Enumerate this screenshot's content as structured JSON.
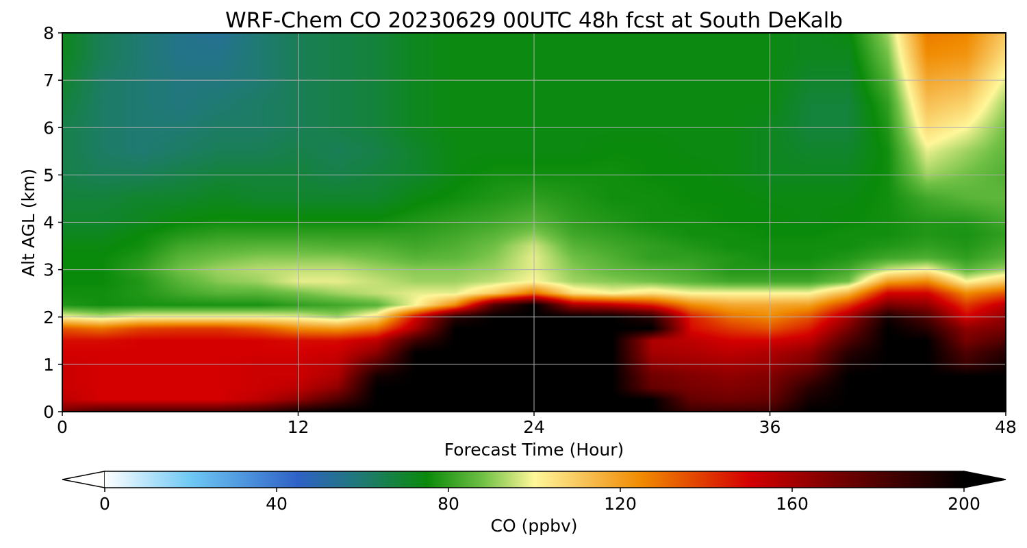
{
  "chart_data": {
    "type": "heatmap",
    "title": "WRF-Chem CO  20230629 00UTC 48h fcst at South DeKalb",
    "xlabel": "Forecast Time (Hour)",
    "ylabel": "Alt AGL (km)",
    "xlim": [
      0,
      48
    ],
    "ylim": [
      0,
      8
    ],
    "xticks": [
      "0",
      "12",
      "24",
      "36",
      "48"
    ],
    "xtick_values": [
      0,
      12,
      24,
      36,
      48
    ],
    "yticks": [
      "0",
      "1",
      "2",
      "3",
      "4",
      "5",
      "6",
      "7",
      "8"
    ],
    "ytick_values": [
      0,
      1,
      2,
      3,
      4,
      5,
      6,
      7,
      8
    ],
    "grid": true,
    "colorbar": {
      "label": "CO  (ppbv)",
      "range": [
        0,
        200
      ],
      "extend": "both",
      "ticks": [
        "0",
        "40",
        "80",
        "120",
        "160",
        "200"
      ],
      "tick_values": [
        0,
        40,
        80,
        120,
        160,
        200
      ],
      "color_stops": [
        {
          "value": 0,
          "color": "#ffffff"
        },
        {
          "value": 20,
          "color": "#6ec8f5"
        },
        {
          "value": 45,
          "color": "#2e62c6"
        },
        {
          "value": 60,
          "color": "#1f7a72"
        },
        {
          "value": 75,
          "color": "#0a8a0a"
        },
        {
          "value": 88,
          "color": "#6fc045"
        },
        {
          "value": 100,
          "color": "#fff79a"
        },
        {
          "value": 112,
          "color": "#f7c055"
        },
        {
          "value": 125,
          "color": "#f08a00"
        },
        {
          "value": 150,
          "color": "#d40000"
        },
        {
          "value": 170,
          "color": "#780000"
        },
        {
          "value": 200,
          "color": "#000000"
        }
      ]
    },
    "x": [
      0,
      2,
      4,
      6,
      8,
      10,
      12,
      14,
      16,
      18,
      20,
      22,
      24,
      26,
      28,
      30,
      32,
      34,
      36,
      38,
      40,
      42,
      44,
      46,
      48
    ],
    "y": [
      0,
      0.25,
      0.5,
      0.75,
      1,
      1.25,
      1.5,
      1.75,
      2,
      2.25,
      2.5,
      2.75,
      3,
      3.25,
      3.5,
      3.75,
      4,
      4.5,
      5,
      5.5,
      6,
      6.5,
      7,
      7.5,
      8
    ],
    "z": [
      [
        170,
        180,
        180,
        180,
        180,
        185,
        195,
        200,
        200,
        200,
        200,
        200,
        200,
        200,
        200,
        200,
        185,
        185,
        185,
        200,
        200,
        200,
        200,
        200,
        200
      ],
      [
        155,
        150,
        150,
        150,
        150,
        155,
        165,
        180,
        200,
        200,
        200,
        200,
        200,
        200,
        200,
        200,
        175,
        172,
        175,
        195,
        200,
        200,
        200,
        200,
        200
      ],
      [
        152,
        150,
        150,
        150,
        150,
        152,
        155,
        165,
        200,
        200,
        200,
        200,
        200,
        200,
        200,
        175,
        170,
        168,
        170,
        190,
        200,
        200,
        200,
        200,
        200
      ],
      [
        152,
        150,
        150,
        150,
        150,
        152,
        152,
        158,
        195,
        200,
        200,
        200,
        200,
        200,
        200,
        172,
        168,
        165,
        168,
        180,
        200,
        200,
        200,
        200,
        200
      ],
      [
        152,
        150,
        150,
        150,
        150,
        152,
        152,
        155,
        180,
        200,
        200,
        200,
        200,
        200,
        200,
        165,
        162,
        160,
        162,
        170,
        195,
        200,
        200,
        185,
        195
      ],
      [
        150,
        150,
        150,
        150,
        150,
        150,
        150,
        152,
        165,
        200,
        200,
        200,
        200,
        200,
        200,
        160,
        158,
        155,
        158,
        165,
        190,
        200,
        200,
        180,
        190
      ],
      [
        148,
        148,
        150,
        150,
        150,
        150,
        148,
        148,
        155,
        185,
        200,
        200,
        200,
        200,
        200,
        158,
        155,
        150,
        150,
        155,
        180,
        200,
        200,
        170,
        180
      ],
      [
        135,
        130,
        138,
        140,
        140,
        135,
        125,
        122,
        130,
        160,
        200,
        200,
        200,
        200,
        200,
        200,
        148,
        140,
        135,
        145,
        170,
        200,
        190,
        165,
        170
      ],
      [
        100,
        95,
        100,
        100,
        100,
        100,
        98,
        92,
        105,
        150,
        190,
        200,
        200,
        200,
        200,
        190,
        145,
        130,
        125,
        135,
        160,
        195,
        180,
        150,
        165
      ],
      [
        78,
        76,
        77,
        77,
        77,
        77,
        80,
        82,
        85,
        100,
        125,
        180,
        200,
        160,
        155,
        145,
        125,
        118,
        118,
        120,
        140,
        170,
        165,
        140,
        155
      ],
      [
        76,
        76,
        78,
        82,
        85,
        85,
        88,
        92,
        95,
        98,
        98,
        110,
        130,
        105,
        100,
        105,
        100,
        100,
        100,
        100,
        115,
        150,
        150,
        125,
        135
      ],
      [
        75,
        75,
        78,
        85,
        90,
        92,
        98,
        98,
        95,
        92,
        92,
        95,
        100,
        92,
        90,
        88,
        85,
        82,
        82,
        82,
        88,
        120,
        125,
        100,
        110
      ],
      [
        75,
        75,
        80,
        88,
        92,
        94,
        95,
        95,
        92,
        90,
        90,
        92,
        98,
        90,
        86,
        84,
        82,
        78,
        78,
        78,
        82,
        95,
        100,
        85,
        92
      ],
      [
        75,
        75,
        78,
        85,
        88,
        90,
        90,
        90,
        88,
        85,
        86,
        90,
        98,
        88,
        84,
        80,
        80,
        78,
        76,
        76,
        78,
        82,
        84,
        80,
        85
      ],
      [
        74,
        74,
        76,
        82,
        84,
        85,
        85,
        84,
        84,
        82,
        84,
        88,
        96,
        85,
        82,
        80,
        78,
        76,
        76,
        76,
        76,
        78,
        80,
        78,
        82
      ],
      [
        72,
        72,
        75,
        78,
        80,
        80,
        80,
        80,
        80,
        80,
        82,
        85,
        90,
        82,
        80,
        78,
        76,
        76,
        75,
        75,
        76,
        76,
        78,
        77,
        80
      ],
      [
        70,
        70,
        72,
        75,
        76,
        76,
        76,
        76,
        76,
        78,
        80,
        82,
        85,
        80,
        78,
        76,
        76,
        75,
        75,
        74,
        75,
        76,
        78,
        78,
        82
      ],
      [
        68,
        68,
        70,
        70,
        72,
        70,
        70,
        70,
        70,
        74,
        76,
        78,
        80,
        78,
        76,
        76,
        75,
        75,
        74,
        74,
        74,
        76,
        82,
        85,
        86
      ],
      [
        66,
        64,
        64,
        66,
        68,
        68,
        68,
        66,
        68,
        70,
        74,
        76,
        76,
        76,
        76,
        75,
        75,
        74,
        72,
        72,
        72,
        76,
        92,
        88,
        84
      ],
      [
        66,
        62,
        60,
        62,
        64,
        64,
        66,
        64,
        66,
        70,
        74,
        74,
        74,
        74,
        75,
        75,
        74,
        74,
        72,
        70,
        70,
        76,
        98,
        92,
        86
      ],
      [
        66,
        62,
        60,
        60,
        62,
        62,
        64,
        66,
        68,
        72,
        74,
        74,
        74,
        74,
        74,
        74,
        74,
        74,
        72,
        68,
        68,
        78,
        106,
        100,
        88
      ],
      [
        68,
        62,
        60,
        58,
        60,
        62,
        64,
        66,
        68,
        72,
        74,
        74,
        74,
        74,
        74,
        74,
        74,
        74,
        74,
        68,
        68,
        80,
        112,
        108,
        92
      ],
      [
        70,
        62,
        60,
        58,
        58,
        60,
        64,
        66,
        68,
        72,
        74,
        74,
        74,
        74,
        74,
        74,
        74,
        74,
        74,
        70,
        70,
        84,
        118,
        115,
        98
      ],
      [
        72,
        64,
        60,
        56,
        56,
        60,
        64,
        66,
        68,
        72,
        74,
        74,
        74,
        74,
        74,
        74,
        74,
        74,
        74,
        72,
        72,
        88,
        124,
        122,
        105
      ],
      [
        72,
        64,
        60,
        56,
        54,
        60,
        64,
        66,
        68,
        72,
        74,
        74,
        74,
        74,
        74,
        74,
        74,
        74,
        74,
        72,
        74,
        92,
        128,
        126,
        110
      ]
    ]
  }
}
